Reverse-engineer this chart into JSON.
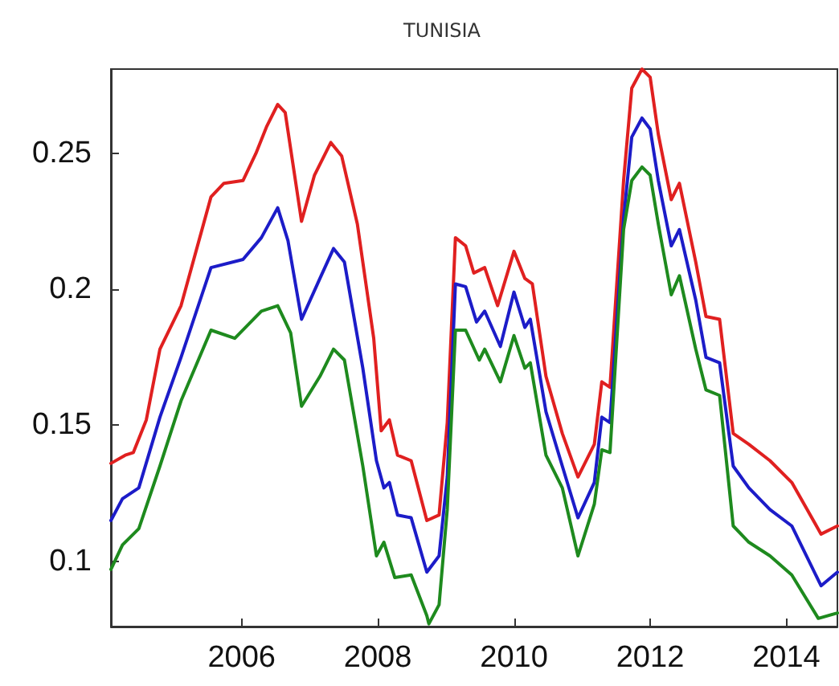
{
  "chart_data": {
    "type": "line",
    "title": "TUNISIA",
    "xlim": [
      2004.08,
      2014.75
    ],
    "xticks": [
      2006,
      2008,
      2010,
      2012,
      2014
    ],
    "ylim": [
      0.076,
      0.281
    ],
    "yticks": [
      0.1,
      0.15,
      0.2,
      0.25
    ],
    "grid": false,
    "marker": "none",
    "line_style": "solid",
    "series": [
      {
        "color": "#e02020",
        "x": [
          2004.08,
          2004.29,
          2004.41,
          2004.6,
          2004.8,
          2005.11,
          2005.55,
          2005.74,
          2006.02,
          2006.21,
          2006.37,
          2006.53,
          2006.64,
          2006.88,
          2007.07,
          2007.31,
          2007.47,
          2007.7,
          2007.94,
          2008.05,
          2008.17,
          2008.29,
          2008.49,
          2008.72,
          2008.9,
          2009.02,
          2009.14,
          2009.29,
          2009.41,
          2009.57,
          2009.76,
          2010,
          2010.16,
          2010.27,
          2010.47,
          2010.71,
          2010.94,
          2011.18,
          2011.29,
          2011.41,
          2011.61,
          2011.73,
          2011.88,
          2012,
          2012.12,
          2012.31,
          2012.43,
          2012.67,
          2012.82,
          2013.02,
          2013.22,
          2013.45,
          2013.76,
          2014.08,
          2014.51,
          2014.75
        ],
        "values": [
          0.136,
          0.139,
          0.14,
          0.152,
          0.178,
          0.194,
          0.234,
          0.239,
          0.24,
          0.25,
          0.26,
          0.268,
          0.265,
          0.225,
          0.242,
          0.254,
          0.249,
          0.224,
          0.182,
          0.148,
          0.152,
          0.139,
          0.137,
          0.115,
          0.117,
          0.151,
          0.219,
          0.216,
          0.206,
          0.208,
          0.194,
          0.214,
          0.204,
          0.202,
          0.168,
          0.147,
          0.131,
          0.143,
          0.166,
          0.164,
          0.24,
          0.274,
          0.281,
          0.278,
          0.257,
          0.233,
          0.239,
          0.21,
          0.19,
          0.189,
          0.147,
          0.143,
          0.137,
          0.129,
          0.11,
          0.113
        ]
      },
      {
        "color": "#1c1cc8",
        "x": [
          2004.08,
          2004.25,
          2004.49,
          2004.8,
          2005.11,
          2005.55,
          2006.02,
          2006.29,
          2006.53,
          2006.68,
          2006.88,
          2007.15,
          2007.35,
          2007.51,
          2007.78,
          2007.98,
          2008.09,
          2008.17,
          2008.29,
          2008.49,
          2008.72,
          2008.9,
          2009.02,
          2009.14,
          2009.29,
          2009.45,
          2009.57,
          2009.8,
          2010,
          2010.16,
          2010.24,
          2010.47,
          2010.71,
          2010.94,
          2011.18,
          2011.29,
          2011.41,
          2011.61,
          2011.73,
          2011.88,
          2012,
          2012.12,
          2012.31,
          2012.43,
          2012.67,
          2012.82,
          2013.02,
          2013.22,
          2013.45,
          2013.76,
          2014.08,
          2014.51,
          2014.75
        ],
        "values": [
          0.115,
          0.123,
          0.127,
          0.153,
          0.175,
          0.208,
          0.211,
          0.219,
          0.23,
          0.218,
          0.189,
          0.204,
          0.215,
          0.21,
          0.171,
          0.137,
          0.127,
          0.129,
          0.117,
          0.116,
          0.096,
          0.102,
          0.131,
          0.202,
          0.201,
          0.188,
          0.192,
          0.179,
          0.199,
          0.186,
          0.189,
          0.155,
          0.135,
          0.116,
          0.129,
          0.153,
          0.151,
          0.226,
          0.256,
          0.263,
          0.259,
          0.24,
          0.216,
          0.222,
          0.196,
          0.175,
          0.173,
          0.135,
          0.127,
          0.119,
          0.113,
          0.091,
          0.096
        ]
      },
      {
        "color": "#1e8a1e",
        "x": [
          2004.08,
          2004.25,
          2004.49,
          2004.8,
          2005.11,
          2005.55,
          2005.9,
          2006.29,
          2006.53,
          2006.72,
          2006.88,
          2007.15,
          2007.35,
          2007.51,
          2007.78,
          2007.98,
          2008.09,
          2008.25,
          2008.49,
          2008.72,
          2008.75,
          2008.9,
          2009.02,
          2009.14,
          2009.29,
          2009.49,
          2009.57,
          2009.8,
          2010,
          2010.16,
          2010.24,
          2010.47,
          2010.71,
          2010.94,
          2011.18,
          2011.29,
          2011.41,
          2011.61,
          2011.73,
          2011.88,
          2012,
          2012.12,
          2012.31,
          2012.43,
          2012.67,
          2012.82,
          2013.02,
          2013.22,
          2013.45,
          2013.76,
          2014.08,
          2014.47,
          2014.75
        ],
        "values": [
          0.097,
          0.106,
          0.112,
          0.135,
          0.159,
          0.185,
          0.182,
          0.192,
          0.194,
          0.184,
          0.157,
          0.168,
          0.178,
          0.174,
          0.135,
          0.102,
          0.107,
          0.094,
          0.095,
          0.08,
          0.077,
          0.084,
          0.119,
          0.185,
          0.185,
          0.174,
          0.178,
          0.166,
          0.183,
          0.171,
          0.173,
          0.139,
          0.127,
          0.102,
          0.121,
          0.141,
          0.14,
          0.222,
          0.24,
          0.245,
          0.242,
          0.224,
          0.198,
          0.205,
          0.178,
          0.163,
          0.161,
          0.113,
          0.107,
          0.102,
          0.095,
          0.079,
          0.081
        ]
      }
    ]
  }
}
